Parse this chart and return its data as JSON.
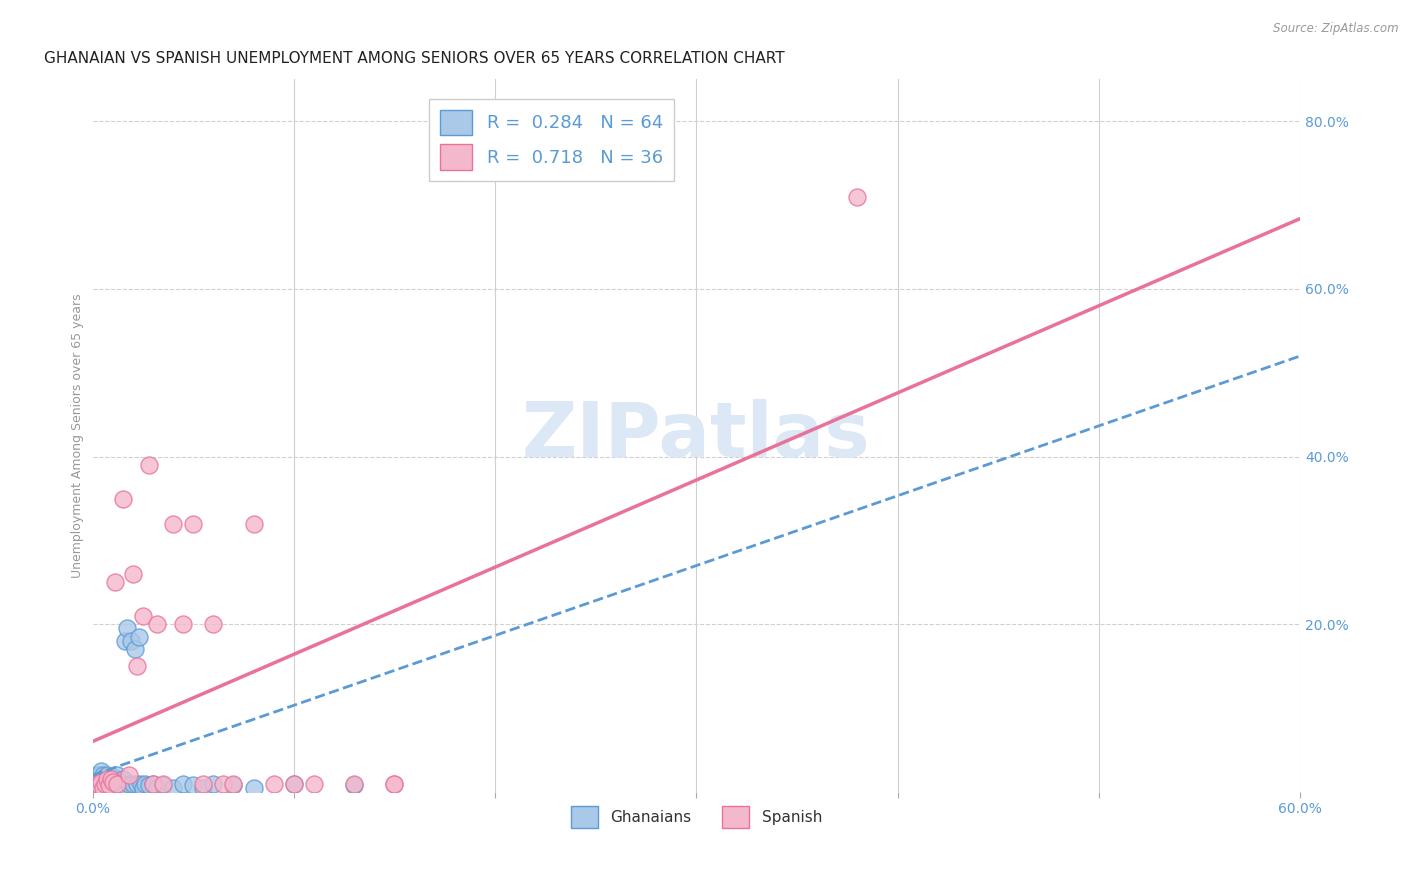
{
  "title": "GHANAIAN VS SPANISH UNEMPLOYMENT AMONG SENIORS OVER 65 YEARS CORRELATION CHART",
  "source": "Source: ZipAtlas.com",
  "ylabel": "Unemployment Among Seniors over 65 years",
  "xlim": [
    0.0,
    0.6
  ],
  "ylim": [
    0.0,
    0.85
  ],
  "ghanaian_color": "#aac8e8",
  "ghanaian_edge": "#5b9bd5",
  "spanish_color": "#f4b8cc",
  "spanish_edge": "#e8729a",
  "ghanaian_R": 0.284,
  "ghanaian_N": 64,
  "spanish_R": 0.718,
  "spanish_N": 36,
  "trend_ghanaian_color": "#5b9bd5",
  "trend_spanish_color": "#e8729a",
  "watermark_color": "#dce8f5",
  "background_color": "#ffffff",
  "grid_color": "#d0d0d0",
  "title_fontsize": 11,
  "axis_label_fontsize": 9,
  "tick_fontsize": 10,
  "ghanaian_x": [
    0.001,
    0.001,
    0.002,
    0.002,
    0.002,
    0.002,
    0.003,
    0.003,
    0.003,
    0.003,
    0.003,
    0.004,
    0.004,
    0.004,
    0.004,
    0.005,
    0.005,
    0.005,
    0.005,
    0.006,
    0.006,
    0.006,
    0.007,
    0.007,
    0.007,
    0.008,
    0.008,
    0.009,
    0.009,
    0.01,
    0.01,
    0.01,
    0.011,
    0.011,
    0.012,
    0.012,
    0.013,
    0.014,
    0.015,
    0.015,
    0.016,
    0.017,
    0.018,
    0.019,
    0.02,
    0.021,
    0.022,
    0.023,
    0.024,
    0.025,
    0.026,
    0.028,
    0.03,
    0.032,
    0.035,
    0.04,
    0.045,
    0.05,
    0.055,
    0.06,
    0.07,
    0.08,
    0.1,
    0.13
  ],
  "ghanaian_y": [
    0.005,
    0.01,
    0.005,
    0.008,
    0.012,
    0.02,
    0.004,
    0.008,
    0.01,
    0.015,
    0.02,
    0.005,
    0.01,
    0.015,
    0.025,
    0.005,
    0.008,
    0.015,
    0.02,
    0.005,
    0.01,
    0.018,
    0.005,
    0.012,
    0.02,
    0.008,
    0.015,
    0.005,
    0.012,
    0.005,
    0.01,
    0.018,
    0.005,
    0.015,
    0.008,
    0.02,
    0.01,
    0.008,
    0.005,
    0.015,
    0.18,
    0.195,
    0.01,
    0.18,
    0.01,
    0.17,
    0.01,
    0.185,
    0.01,
    0.005,
    0.01,
    0.008,
    0.01,
    0.005,
    0.008,
    0.005,
    0.01,
    0.008,
    0.005,
    0.01,
    0.008,
    0.005,
    0.01,
    0.008
  ],
  "spanish_x": [
    0.001,
    0.002,
    0.003,
    0.004,
    0.005,
    0.006,
    0.007,
    0.008,
    0.009,
    0.01,
    0.011,
    0.012,
    0.015,
    0.018,
    0.02,
    0.022,
    0.025,
    0.028,
    0.03,
    0.032,
    0.035,
    0.04,
    0.045,
    0.05,
    0.055,
    0.06,
    0.065,
    0.07,
    0.08,
    0.09,
    0.1,
    0.11,
    0.13,
    0.15,
    0.15,
    0.38
  ],
  "spanish_y": [
    0.005,
    0.01,
    0.008,
    0.012,
    0.005,
    0.01,
    0.015,
    0.008,
    0.015,
    0.012,
    0.25,
    0.01,
    0.35,
    0.02,
    0.26,
    0.15,
    0.21,
    0.39,
    0.01,
    0.2,
    0.01,
    0.32,
    0.2,
    0.32,
    0.01,
    0.2,
    0.01,
    0.01,
    0.32,
    0.01,
    0.01,
    0.01,
    0.01,
    0.01,
    0.01,
    0.71
  ],
  "trend_gh_x0": 0.0,
  "trend_gh_y0": 0.02,
  "trend_gh_x1": 0.6,
  "trend_gh_y1": 0.52,
  "trend_sp_x0": 0.0,
  "trend_sp_y0": 0.0,
  "trend_sp_x1": 0.6,
  "trend_sp_y1": 0.6
}
